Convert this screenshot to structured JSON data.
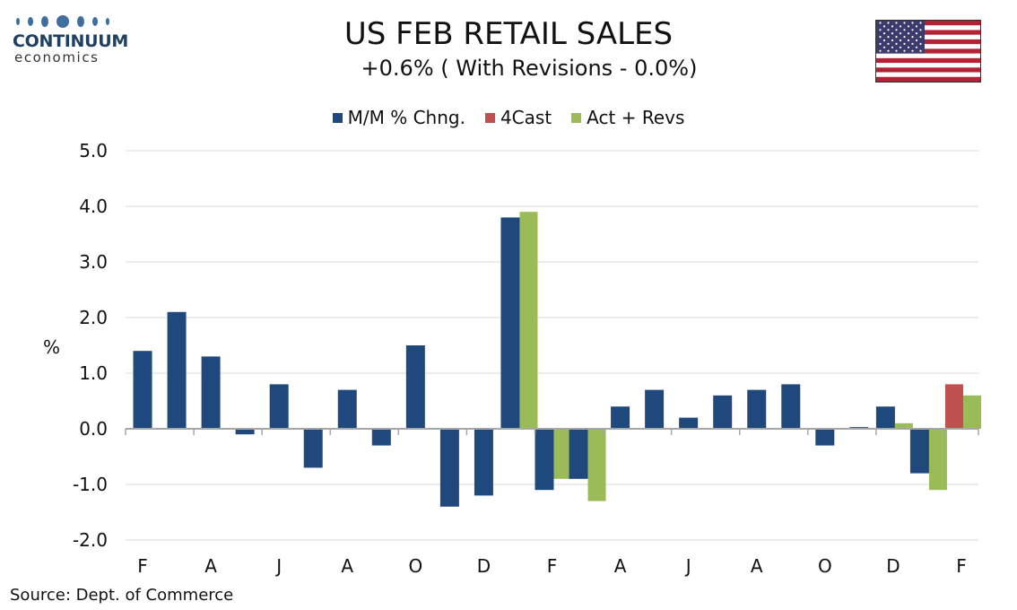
{
  "logo": {
    "word": "CONTINUUM",
    "sub": "economics"
  },
  "flag_icon": "us-flag-icon",
  "source": "Source: Dept. of Commerce",
  "colors": {
    "mm": "#1f497d",
    "fcast": "#c0504d",
    "act": "#9bbb59"
  },
  "chart_data": {
    "type": "bar",
    "title": "US FEB RETAIL SALES",
    "subtitle": "+0.6% ( With Revisions - 0.0%)",
    "ylabel": "%",
    "xlabel": "",
    "ylim": [
      -2.0,
      5.0
    ],
    "yticks": [
      "5.0",
      "4.0",
      "3.0",
      "2.0",
      "1.0",
      "0.0",
      "-1.0",
      "-2.0"
    ],
    "ytick_values": [
      5,
      4,
      3,
      2,
      1,
      0,
      -1,
      -2
    ],
    "grid": true,
    "legend_position": "top-center",
    "x_tick_labels": [
      "F",
      "",
      "A",
      "",
      "J",
      "",
      "A",
      "",
      "O",
      "",
      "D",
      "",
      "F",
      "",
      "A",
      "",
      "J",
      "",
      "A",
      "",
      "O",
      "",
      "D",
      "",
      "F"
    ],
    "series": [
      {
        "name": "M/M % Chng.",
        "values": [
          1.4,
          2.1,
          1.3,
          -0.1,
          0.8,
          -0.7,
          0.7,
          -0.3,
          1.5,
          -1.4,
          -1.2,
          3.8,
          -1.1,
          -0.9,
          0.4,
          0.7,
          0.2,
          0.6,
          0.7,
          0.8,
          -0.3,
          0.03,
          0.4,
          -0.8,
          null
        ]
      },
      {
        "name": "4Cast",
        "values": [
          null,
          null,
          null,
          null,
          null,
          null,
          null,
          null,
          null,
          null,
          null,
          null,
          null,
          null,
          null,
          null,
          null,
          null,
          null,
          null,
          null,
          null,
          null,
          null,
          0.8
        ]
      },
      {
        "name": "Act + Revs",
        "values": [
          null,
          null,
          null,
          null,
          null,
          null,
          null,
          null,
          null,
          null,
          null,
          3.9,
          -0.9,
          -1.3,
          null,
          null,
          null,
          null,
          null,
          null,
          null,
          null,
          0.1,
          -1.1,
          0.6
        ]
      }
    ]
  }
}
